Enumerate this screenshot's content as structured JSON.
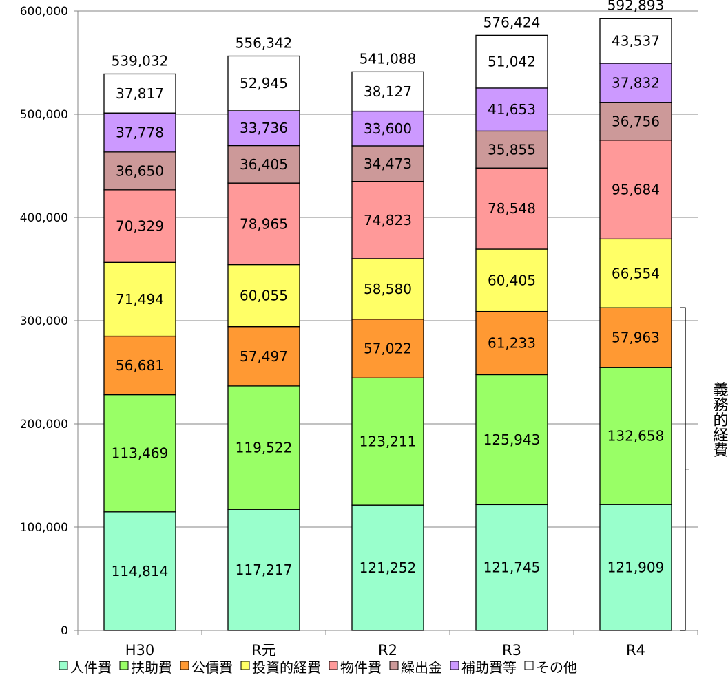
{
  "chart_data": {
    "type": "bar",
    "stacked": true,
    "categories": [
      "H30",
      "R元",
      "R2",
      "R3",
      "R4"
    ],
    "ylim": [
      0,
      600000
    ],
    "yticks": [
      0,
      100000,
      200000,
      300000,
      400000,
      500000,
      600000
    ],
    "ytick_labels": [
      "0",
      "100,000",
      "200,000",
      "300,000",
      "400,000",
      "500,000",
      "600,000"
    ],
    "grid": true,
    "legend_position": "bottom",
    "series": [
      {
        "name": "人件費",
        "color": "#99ffcc",
        "values": [
          114814,
          117217,
          121252,
          121745,
          121909
        ],
        "labels": [
          "114,814",
          "117,217",
          "121,252",
          "121,745",
          "121,909"
        ]
      },
      {
        "name": "扶助費",
        "color": "#99ff66",
        "values": [
          113469,
          119522,
          123211,
          125943,
          132658
        ],
        "labels": [
          "113,469",
          "119,522",
          "123,211",
          "125,943",
          "132,658"
        ]
      },
      {
        "name": "公債費",
        "color": "#ff9933",
        "values": [
          56681,
          57497,
          57022,
          61233,
          57963
        ],
        "labels": [
          "56,681",
          "57,497",
          "57,022",
          "61,233",
          "57,963"
        ]
      },
      {
        "name": "投資的経費",
        "color": "#ffff66",
        "values": [
          71494,
          60055,
          58580,
          60405,
          66554
        ],
        "labels": [
          "71,494",
          "60,055",
          "58,580",
          "60,405",
          "66,554"
        ]
      },
      {
        "name": "物件費",
        "color": "#ff9999",
        "values": [
          70329,
          78965,
          74823,
          78548,
          95684
        ],
        "labels": [
          "70,329",
          "78,965",
          "74,823",
          "78,548",
          "95,684"
        ]
      },
      {
        "name": "繰出金",
        "color": "#cc9999",
        "values": [
          36650,
          36405,
          34473,
          35855,
          36756
        ],
        "labels": [
          "36,650",
          "36,405",
          "34,473",
          "35,855",
          "36,756"
        ]
      },
      {
        "name": "補助費等",
        "color": "#cc99ff",
        "values": [
          37778,
          33736,
          33600,
          41653,
          37832
        ],
        "labels": [
          "37,778",
          "33,736",
          "33,600",
          "41,653",
          "37,832"
        ]
      },
      {
        "name": "その他",
        "color": "#ffffff",
        "values": [
          37817,
          52945,
          38127,
          51042,
          43537
        ],
        "labels": [
          "37,817",
          "52,945",
          "38,127",
          "51,042",
          "43,537"
        ]
      }
    ],
    "totals": [
      539032,
      556342,
      541088,
      576424,
      592893
    ],
    "total_labels": [
      "539,032",
      "556,342",
      "541,088",
      "576,424",
      "592,893"
    ],
    "annotation": {
      "text": "義務的経費",
      "spans_series": [
        "人件費",
        "扶助費",
        "公債費"
      ]
    }
  }
}
